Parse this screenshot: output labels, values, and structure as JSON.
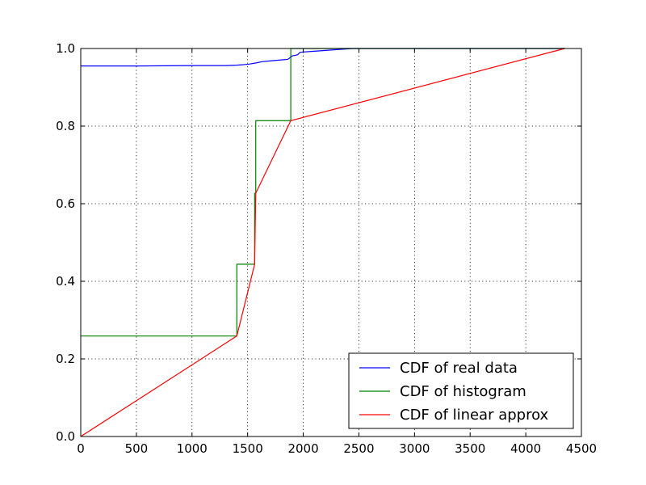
{
  "chart_data": {
    "type": "line",
    "title": "",
    "xlabel": "",
    "ylabel": "",
    "xlim": [
      0,
      4500
    ],
    "ylim": [
      0,
      1.0
    ],
    "x_ticks": [
      0,
      500,
      1000,
      1500,
      2000,
      2500,
      3000,
      3500,
      4000,
      4500
    ],
    "x_tick_labels": [
      "0",
      "500",
      "1000",
      "1500",
      "2000",
      "2500",
      "3000",
      "3500",
      "4000",
      "4500"
    ],
    "y_ticks": [
      0,
      0.2,
      0.4,
      0.6,
      0.8,
      1.0
    ],
    "y_tick_labels": [
      "0.0",
      "0.2",
      "0.4",
      "0.6",
      "0.8",
      "1.0"
    ],
    "grid": true,
    "legend_position": "lower-right",
    "series": [
      {
        "name": "CDF of real data",
        "color": "#0000ff",
        "step": false,
        "points": [
          [
            0,
            0.955
          ],
          [
            500,
            0.955
          ],
          [
            1000,
            0.956
          ],
          [
            1300,
            0.956
          ],
          [
            1400,
            0.957
          ],
          [
            1450,
            0.958
          ],
          [
            1520,
            0.96
          ],
          [
            1580,
            0.963
          ],
          [
            1630,
            0.966
          ],
          [
            1700,
            0.968
          ],
          [
            1780,
            0.97
          ],
          [
            1860,
            0.972
          ],
          [
            1880,
            0.976
          ],
          [
            1900,
            0.981
          ],
          [
            1950,
            0.984
          ],
          [
            1970,
            0.99
          ],
          [
            2000,
            0.991
          ],
          [
            2100,
            0.993
          ],
          [
            2200,
            0.995
          ],
          [
            2350,
            0.998
          ],
          [
            2450,
            1.0
          ],
          [
            4350,
            1.0
          ]
        ]
      },
      {
        "name": "CDF of histogram",
        "color": "#008000",
        "step": true,
        "points": [
          [
            0,
            0.259
          ],
          [
            1403,
            0.259
          ],
          [
            1403,
            0.444
          ],
          [
            1563,
            0.444
          ],
          [
            1563,
            0.627
          ],
          [
            1573,
            0.627
          ],
          [
            1573,
            0.814
          ],
          [
            1888,
            0.814
          ],
          [
            1888,
            1.0
          ],
          [
            4350,
            1.0
          ]
        ]
      },
      {
        "name": "CDF of linear approx",
        "color": "#ff0000",
        "step": false,
        "points": [
          [
            0,
            0.0
          ],
          [
            1403,
            0.259
          ],
          [
            1563,
            0.444
          ],
          [
            1573,
            0.627
          ],
          [
            1888,
            0.814
          ],
          [
            4350,
            1.0
          ]
        ]
      }
    ]
  }
}
